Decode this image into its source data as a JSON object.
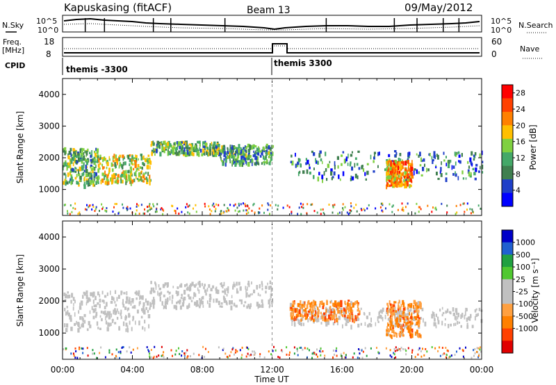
{
  "header": {
    "station": "Kapuskasing (fitACF)",
    "beam": "Beam 13",
    "date": "09/May/2012"
  },
  "top_panels": {
    "nsky_label": "N.Sky",
    "nsearch_label": "N.Search",
    "nsky_ticks": [
      "10^5",
      "10^0"
    ],
    "freq_label": "Freq.",
    "freq_unit": "[MHz]",
    "freq_ticks": [
      "18",
      "8"
    ],
    "nave_label": "Nave",
    "nave_ticks": [
      "60",
      "0"
    ],
    "cpid_label": "CPID",
    "cpid_segments": [
      {
        "label": "themis -3300",
        "start": "00:00",
        "end": "12:00"
      },
      {
        "label": "themis 3300",
        "start": "12:00",
        "end": "24:00"
      }
    ]
  },
  "colors": {
    "power": [
      "#0000ff",
      "#1f3fc8",
      "#3f7f4f",
      "#44a868",
      "#7fd040",
      "#ffbf00",
      "#ff8000",
      "#ff4000",
      "#ff0000"
    ],
    "velocity": [
      "#0000c8",
      "#2060d0",
      "#20a040",
      "#50c830",
      "#c0c0c0",
      "#c0c0c0",
      "#ffa040",
      "#ff8000",
      "#ff4000",
      "#e00000"
    ],
    "ground_scatter": "#c0c0c0"
  },
  "chart_data": [
    {
      "type": "heatmap",
      "title": "",
      "xlabel": "",
      "ylabel": "Slant Range [km]",
      "x_ticks": [
        "00:00",
        "04:00",
        "08:00",
        "12:00",
        "16:00",
        "20:00",
        "00:00"
      ],
      "xlim_hours": [
        0,
        24
      ],
      "y_ticks": [
        "1000",
        "2000",
        "3000",
        "4000"
      ],
      "ylim": [
        180,
        4500
      ],
      "colorbar_label": "Power [dB]",
      "colorbar_ticks": [
        "4",
        "8",
        "12",
        "16",
        "20",
        "24",
        "28"
      ],
      "colorbar_range": [
        0,
        30
      ],
      "features": [
        {
          "time_hours": [
            0,
            2
          ],
          "range_km": [
            1100,
            2300
          ],
          "value": 12
        },
        {
          "time_hours": [
            2,
            5
          ],
          "range_km": [
            1200,
            2100
          ],
          "value": 16
        },
        {
          "time_hours": [
            5,
            9
          ],
          "range_km": [
            2100,
            2500
          ],
          "value": 12
        },
        {
          "time_hours": [
            9,
            12
          ],
          "range_km": [
            1800,
            2400
          ],
          "value": 10
        },
        {
          "time_hours": [
            13,
            24
          ],
          "range_km": [
            1300,
            2200
          ],
          "value": 8
        },
        {
          "time_hours": [
            18.5,
            20
          ],
          "range_km": [
            1100,
            1900
          ],
          "value": 22
        }
      ]
    },
    {
      "type": "heatmap",
      "title": "",
      "xlabel": "Time UT",
      "ylabel": "Slant Range [km]",
      "x_ticks": [
        "00:00",
        "04:00",
        "08:00",
        "12:00",
        "16:00",
        "20:00",
        "00:00"
      ],
      "xlim_hours": [
        0,
        24
      ],
      "y_ticks": [
        "1000",
        "2000",
        "3000",
        "4000"
      ],
      "ylim": [
        180,
        4500
      ],
      "colorbar_label": "Velocity [m s⁻¹]",
      "colorbar_ticks": [
        "1000",
        "500",
        "100",
        "25",
        "-25",
        "-100",
        "-500",
        "-1000"
      ],
      "features": [
        {
          "time_hours": [
            0,
            5
          ],
          "range_km": [
            1100,
            2300
          ],
          "value": 0
        },
        {
          "time_hours": [
            5,
            12
          ],
          "range_km": [
            1800,
            2600
          ],
          "value": 0
        },
        {
          "time_hours": [
            13,
            24
          ],
          "range_km": [
            1200,
            1800
          ],
          "value": 0
        },
        {
          "time_hours": [
            13,
            17
          ],
          "range_km": [
            1400,
            2000
          ],
          "value": -300
        },
        {
          "time_hours": [
            18.5,
            20.5
          ],
          "range_km": [
            900,
            2000
          ],
          "value": -500
        }
      ]
    }
  ]
}
